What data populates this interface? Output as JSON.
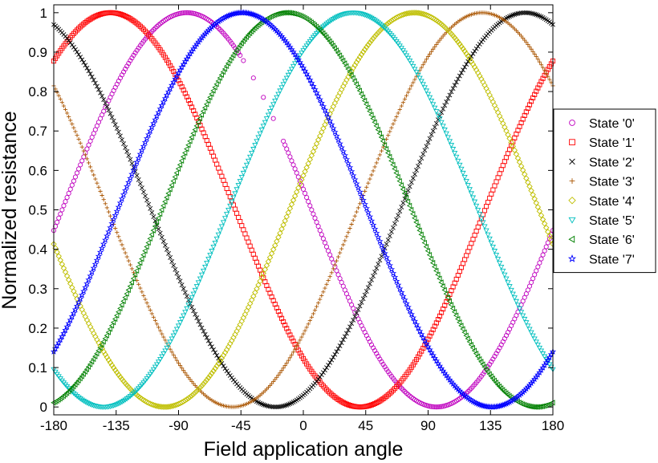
{
  "chart_data": {
    "type": "scatter",
    "title": "",
    "xlabel": "Field application angle",
    "ylabel": "Normalized resistance",
    "xlim": [
      -180,
      180
    ],
    "ylim": [
      -0.02,
      1.02
    ],
    "xticks": [
      -180,
      -135,
      -90,
      -45,
      0,
      45,
      90,
      135,
      180
    ],
    "xtick_labels": [
      "-180",
      "-135",
      "-90",
      "-45",
      "0",
      "45",
      "90",
      "135",
      "180"
    ],
    "yticks": [
      0,
      0.1,
      0.2,
      0.3,
      0.4,
      0.5,
      0.6,
      0.7,
      0.8,
      0.9,
      1
    ],
    "ytick_labels": [
      "0",
      "0.1",
      "0.2",
      "0.3",
      "0.4",
      "0.5",
      "0.6",
      "0.7",
      "0.8",
      "0.9",
      "1"
    ],
    "grid": false,
    "legend_position": "right, outside plot",
    "series": [
      {
        "name": "State '0'",
        "color": "#bf00bf",
        "marker": "circle",
        "peak_angle": -84,
        "gap": [
          -45,
          -15
        ]
      },
      {
        "name": "State '1'",
        "color": "#ff0000",
        "marker": "square",
        "peak_angle": -139
      },
      {
        "name": "State '2'",
        "color": "#000000",
        "marker": "x",
        "peak_angle": 160
      },
      {
        "name": "State '3'",
        "color": "#aa5500",
        "marker": "plus",
        "peak_angle": 129
      },
      {
        "name": "State '4'",
        "color": "#bfbf00",
        "marker": "diamond",
        "peak_angle": 80
      },
      {
        "name": "State '5'",
        "color": "#00bfbf",
        "marker": "triangle-down",
        "peak_angle": 36
      },
      {
        "name": "State '6'",
        "color": "#008000",
        "marker": "triangle-left",
        "peak_angle": -12
      },
      {
        "name": "State '7'",
        "color": "#0000ff",
        "marker": "star",
        "peak_angle": -44
      }
    ],
    "curve_model": "y = cos^2((angle - peak_angle)/2)"
  }
}
